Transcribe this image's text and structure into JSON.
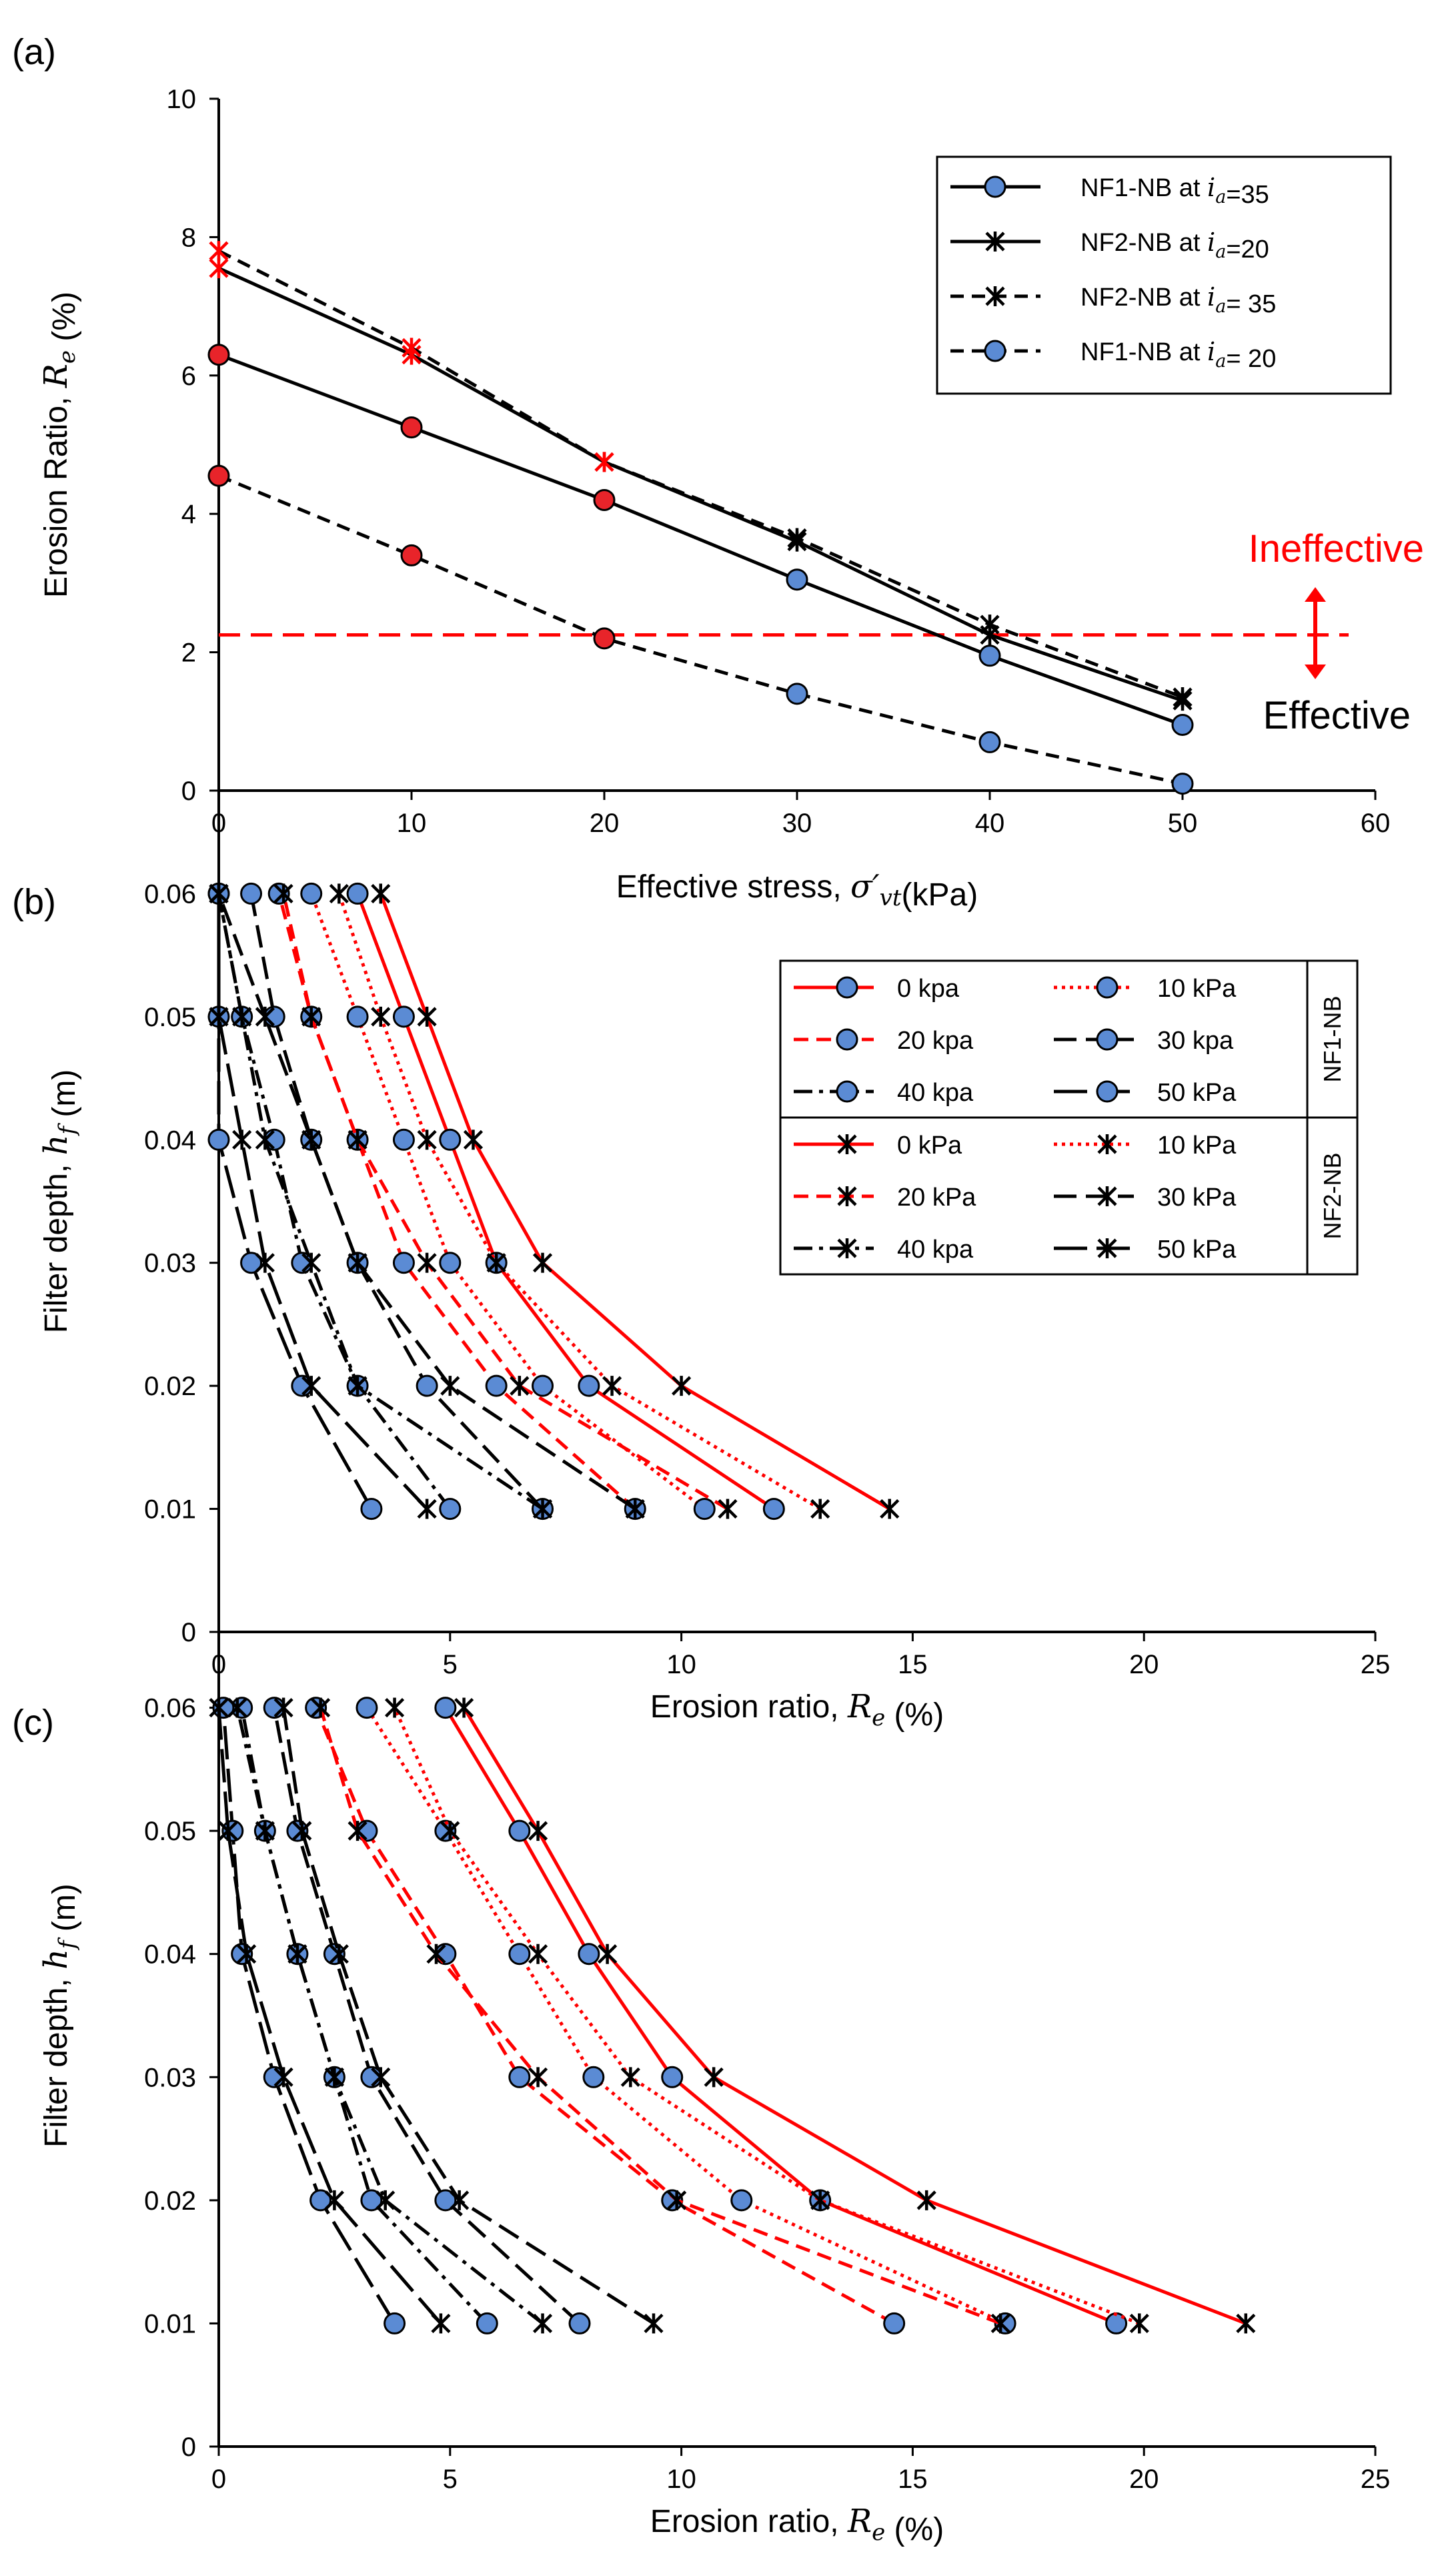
{
  "chart_data": [
    {
      "panel": "(a)",
      "type": "line",
      "xlabel": "Effective stress, ",
      "xlabel_sym": "σ′vt",
      "xlabel_unit": "(kPa)",
      "ylabel": "Erosion Ratio, ",
      "ylabel_sym": "Re",
      "ylabel_unit": " (%)",
      "xlim": [
        0,
        60
      ],
      "ylim": [
        0,
        10
      ],
      "xticks": [
        "0",
        "10",
        "20",
        "30",
        "40",
        "50",
        "60"
      ],
      "yticks": [
        "0",
        "2",
        "4",
        "6",
        "8",
        "10"
      ],
      "threshold": 2.25,
      "annotations": {
        "ineffective": "Ineffective",
        "effective": "Effective"
      },
      "series": [
        {
          "name": "NF1-NB at ",
          "sym": "ia",
          "eq": "=35",
          "marker": "circle",
          "dash": "solid",
          "x": [
            0,
            10,
            20,
            30,
            40,
            50
          ],
          "y": [
            6.3,
            5.25,
            4.2,
            3.05,
            1.95,
            0.95
          ],
          "red_upto": 20
        },
        {
          "name": "NF2-NB at ",
          "sym": "ia",
          "eq": "=20",
          "marker": "star",
          "dash": "solid",
          "x": [
            0,
            10,
            20,
            30,
            40,
            50
          ],
          "y": [
            7.55,
            6.3,
            4.75,
            3.6,
            2.25,
            1.3
          ],
          "red_upto": 20
        },
        {
          "name": "NF2-NB at ",
          "sym": "ia",
          "eq": "= 35",
          "marker": "star",
          "dash": "dashed",
          "x": [
            0,
            10,
            20,
            30,
            40,
            50
          ],
          "y": [
            7.8,
            6.4,
            4.75,
            3.65,
            2.4,
            1.35
          ],
          "red_upto": 20
        },
        {
          "name": "NF1-NB at ",
          "sym": "ia",
          "eq": "= 20",
          "marker": "circle",
          "dash": "dashed",
          "x": [
            0,
            10,
            20,
            30,
            40,
            50
          ],
          "y": [
            4.55,
            3.4,
            2.2,
            1.4,
            0.7,
            0.1
          ],
          "red_upto": 20
        }
      ]
    },
    {
      "panel": "(b)",
      "type": "line",
      "xlabel": "Erosion ratio, ",
      "xlabel_sym": "Re",
      "xlabel_unit": " (%)",
      "ylabel": "Filter depth, ",
      "ylabel_sym": "hf",
      "ylabel_unit": " (m)",
      "xlim": [
        0,
        25
      ],
      "ylim": [
        0,
        0.07
      ],
      "xticks": [
        "0",
        "5",
        "10",
        "15",
        "20",
        "25"
      ],
      "yticks": [
        "0",
        "0.01",
        "0.02",
        "0.03",
        "0.04",
        "0.05",
        "0.06"
      ],
      "legend_groups": [
        "NF1-NB",
        "NF2-NB"
      ],
      "series": [
        {
          "name": "0 kpa",
          "group": "NF1-NB",
          "marker": "circle",
          "color": "#ff0000",
          "dash": "solid",
          "y": [
            0.01,
            0.02,
            0.03,
            0.04,
            0.05,
            0.06
          ],
          "x": [
            12,
            8,
            6,
            5,
            4,
            3
          ]
        },
        {
          "name": "10 kPa",
          "group": "NF1-NB",
          "marker": "circle",
          "color": "#ff0000",
          "dash": "dotted",
          "y": [
            0.01,
            0.02,
            0.03,
            0.04,
            0.05,
            0.06
          ],
          "x": [
            10.5,
            7,
            5,
            4,
            3,
            2
          ]
        },
        {
          "name": "20 kpa",
          "group": "NF1-NB",
          "marker": "circle",
          "color": "#ff0000",
          "dash": "dashed",
          "y": [
            0.01,
            0.02,
            0.03,
            0.04,
            0.05,
            0.06
          ],
          "x": [
            9,
            6,
            4,
            3,
            2,
            1.3
          ]
        },
        {
          "name": "30 kpa",
          "group": "NF1-NB",
          "marker": "circle",
          "color": "#000000",
          "dash": "longdash",
          "y": [
            0.01,
            0.02,
            0.03,
            0.04,
            0.05,
            0.06
          ],
          "x": [
            7,
            4.5,
            3,
            2,
            1.2,
            0.7
          ]
        },
        {
          "name": "40 kpa",
          "group": "NF1-NB",
          "marker": "circle",
          "color": "#000000",
          "dash": "dashdot",
          "y": [
            0.01,
            0.02,
            0.03,
            0.04,
            0.05,
            0.06
          ],
          "x": [
            5,
            3,
            1.8,
            1.2,
            0.5,
            0
          ]
        },
        {
          "name": "50 kPa",
          "group": "NF1-NB",
          "marker": "circle",
          "color": "#000000",
          "dash": "dashlong",
          "y": [
            0.01,
            0.02,
            0.03,
            0.04,
            0.05,
            0.06
          ],
          "x": [
            3.3,
            1.8,
            0.7,
            0,
            0,
            0
          ]
        },
        {
          "name": "0 kPa",
          "group": "NF2-NB",
          "marker": "star",
          "color": "#ff0000",
          "dash": "solid",
          "y": [
            0.01,
            0.02,
            0.03,
            0.04,
            0.05,
            0.06
          ],
          "x": [
            14.5,
            10,
            7,
            5.5,
            4.5,
            3.5
          ]
        },
        {
          "name": "10 kPa",
          "group": "NF2-NB",
          "marker": "star",
          "color": "#ff0000",
          "dash": "dotted",
          "y": [
            0.01,
            0.02,
            0.03,
            0.04,
            0.05,
            0.06
          ],
          "x": [
            13,
            8.5,
            6,
            4.5,
            3.5,
            2.6
          ]
        },
        {
          "name": "20 kPa",
          "group": "NF2-NB",
          "marker": "star",
          "color": "#ff0000",
          "dash": "dashed",
          "y": [
            0.01,
            0.02,
            0.03,
            0.04,
            0.05,
            0.06
          ],
          "x": [
            11,
            6.5,
            4.5,
            3,
            2,
            1.4
          ]
        },
        {
          "name": "30 kPa",
          "group": "NF2-NB",
          "marker": "star",
          "color": "#000000",
          "dash": "longdash",
          "y": [
            0.01,
            0.02,
            0.03,
            0.04,
            0.05,
            0.06
          ],
          "x": [
            9,
            5,
            3,
            2,
            1,
            0
          ]
        },
        {
          "name": "40 kpa",
          "group": "NF2-NB",
          "marker": "star",
          "color": "#000000",
          "dash": "dashdot",
          "y": [
            0.01,
            0.02,
            0.03,
            0.04,
            0.05,
            0.06
          ],
          "x": [
            7,
            3,
            2,
            1,
            0.5,
            0
          ]
        },
        {
          "name": "50 kPa",
          "group": "NF2-NB",
          "marker": "star",
          "color": "#000000",
          "dash": "dashlong",
          "y": [
            0.01,
            0.02,
            0.03,
            0.04,
            0.05,
            0.06
          ],
          "x": [
            4.5,
            2,
            1,
            0.5,
            0,
            0
          ]
        }
      ]
    },
    {
      "panel": "(c)",
      "type": "line",
      "xlabel": "Erosion ratio, ",
      "xlabel_sym": "Re",
      "xlabel_unit": " (%)",
      "ylabel": "Filter depth, ",
      "ylabel_sym": "hf",
      "ylabel_unit": " (m)",
      "xlim": [
        0,
        25
      ],
      "ylim": [
        0,
        0.07
      ],
      "xticks": [
        "0",
        "5",
        "10",
        "15",
        "20",
        "25"
      ],
      "yticks": [
        "0",
        "0.01",
        "0.02",
        "0.03",
        "0.04",
        "0.05",
        "0.06"
      ],
      "series": [
        {
          "marker": "circle",
          "color": "#ff0000",
          "dash": "solid",
          "y": [
            0.01,
            0.02,
            0.03,
            0.04,
            0.05,
            0.06
          ],
          "x": [
            19.4,
            13,
            9.8,
            8,
            6.5,
            4.9
          ]
        },
        {
          "marker": "circle",
          "color": "#ff0000",
          "dash": "dotted",
          "y": [
            0.01,
            0.02,
            0.03,
            0.04,
            0.05,
            0.06
          ],
          "x": [
            17,
            11.3,
            8.1,
            6.5,
            4.9,
            3.2
          ]
        },
        {
          "marker": "circle",
          "color": "#ff0000",
          "dash": "dashed",
          "y": [
            0.01,
            0.02,
            0.03,
            0.04,
            0.05,
            0.06
          ],
          "x": [
            14.6,
            9.8,
            6.5,
            4.9,
            3.2,
            2.1
          ]
        },
        {
          "marker": "circle",
          "color": "#000000",
          "dash": "longdash",
          "y": [
            0.01,
            0.02,
            0.03,
            0.04,
            0.05,
            0.06
          ],
          "x": [
            7.8,
            4.9,
            3.3,
            2.5,
            1.7,
            1.2
          ]
        },
        {
          "marker": "circle",
          "color": "#000000",
          "dash": "dashdot",
          "y": [
            0.01,
            0.02,
            0.03,
            0.04,
            0.05,
            0.06
          ],
          "x": [
            5.8,
            3.3,
            2.5,
            1.7,
            1.0,
            0.5
          ]
        },
        {
          "marker": "circle",
          "color": "#000000",
          "dash": "dashlong",
          "y": [
            0.01,
            0.02,
            0.03,
            0.04,
            0.05,
            0.06
          ],
          "x": [
            3.8,
            2.2,
            1.2,
            0.5,
            0.3,
            0.1
          ]
        },
        {
          "marker": "star",
          "color": "#ff0000",
          "dash": "solid",
          "y": [
            0.01,
            0.02,
            0.03,
            0.04,
            0.05,
            0.06
          ],
          "x": [
            22.2,
            15.3,
            10.7,
            8.4,
            6.9,
            5.3
          ]
        },
        {
          "marker": "star",
          "color": "#ff0000",
          "dash": "dotted",
          "y": [
            0.01,
            0.02,
            0.03,
            0.04,
            0.05,
            0.06
          ],
          "x": [
            19.9,
            13,
            8.9,
            6.9,
            5.0,
            3.8
          ]
        },
        {
          "marker": "star",
          "color": "#ff0000",
          "dash": "dashed",
          "y": [
            0.01,
            0.02,
            0.03,
            0.04,
            0.05,
            0.06
          ],
          "x": [
            16.9,
            9.9,
            6.9,
            4.7,
            3.0,
            2.2
          ]
        },
        {
          "marker": "star",
          "color": "#000000",
          "dash": "longdash",
          "y": [
            0.01,
            0.02,
            0.03,
            0.04,
            0.05,
            0.06
          ],
          "x": [
            9.4,
            5.2,
            3.5,
            2.6,
            1.8,
            1.4
          ]
        },
        {
          "marker": "star",
          "color": "#000000",
          "dash": "dashdot",
          "y": [
            0.01,
            0.02,
            0.03,
            0.04,
            0.05,
            0.06
          ],
          "x": [
            7.0,
            3.6,
            2.5,
            1.7,
            1.0,
            0.4
          ]
        },
        {
          "marker": "star",
          "color": "#000000",
          "dash": "dashlong",
          "y": [
            0.01,
            0.02,
            0.03,
            0.04,
            0.05,
            0.06
          ],
          "x": [
            4.8,
            2.5,
            1.4,
            0.6,
            0.2,
            0
          ]
        }
      ]
    }
  ],
  "colors": {
    "red": "#ff0000",
    "black": "#000000",
    "marker_fill": "#5b8bd4",
    "marker_fill_red": "#e8242a"
  }
}
